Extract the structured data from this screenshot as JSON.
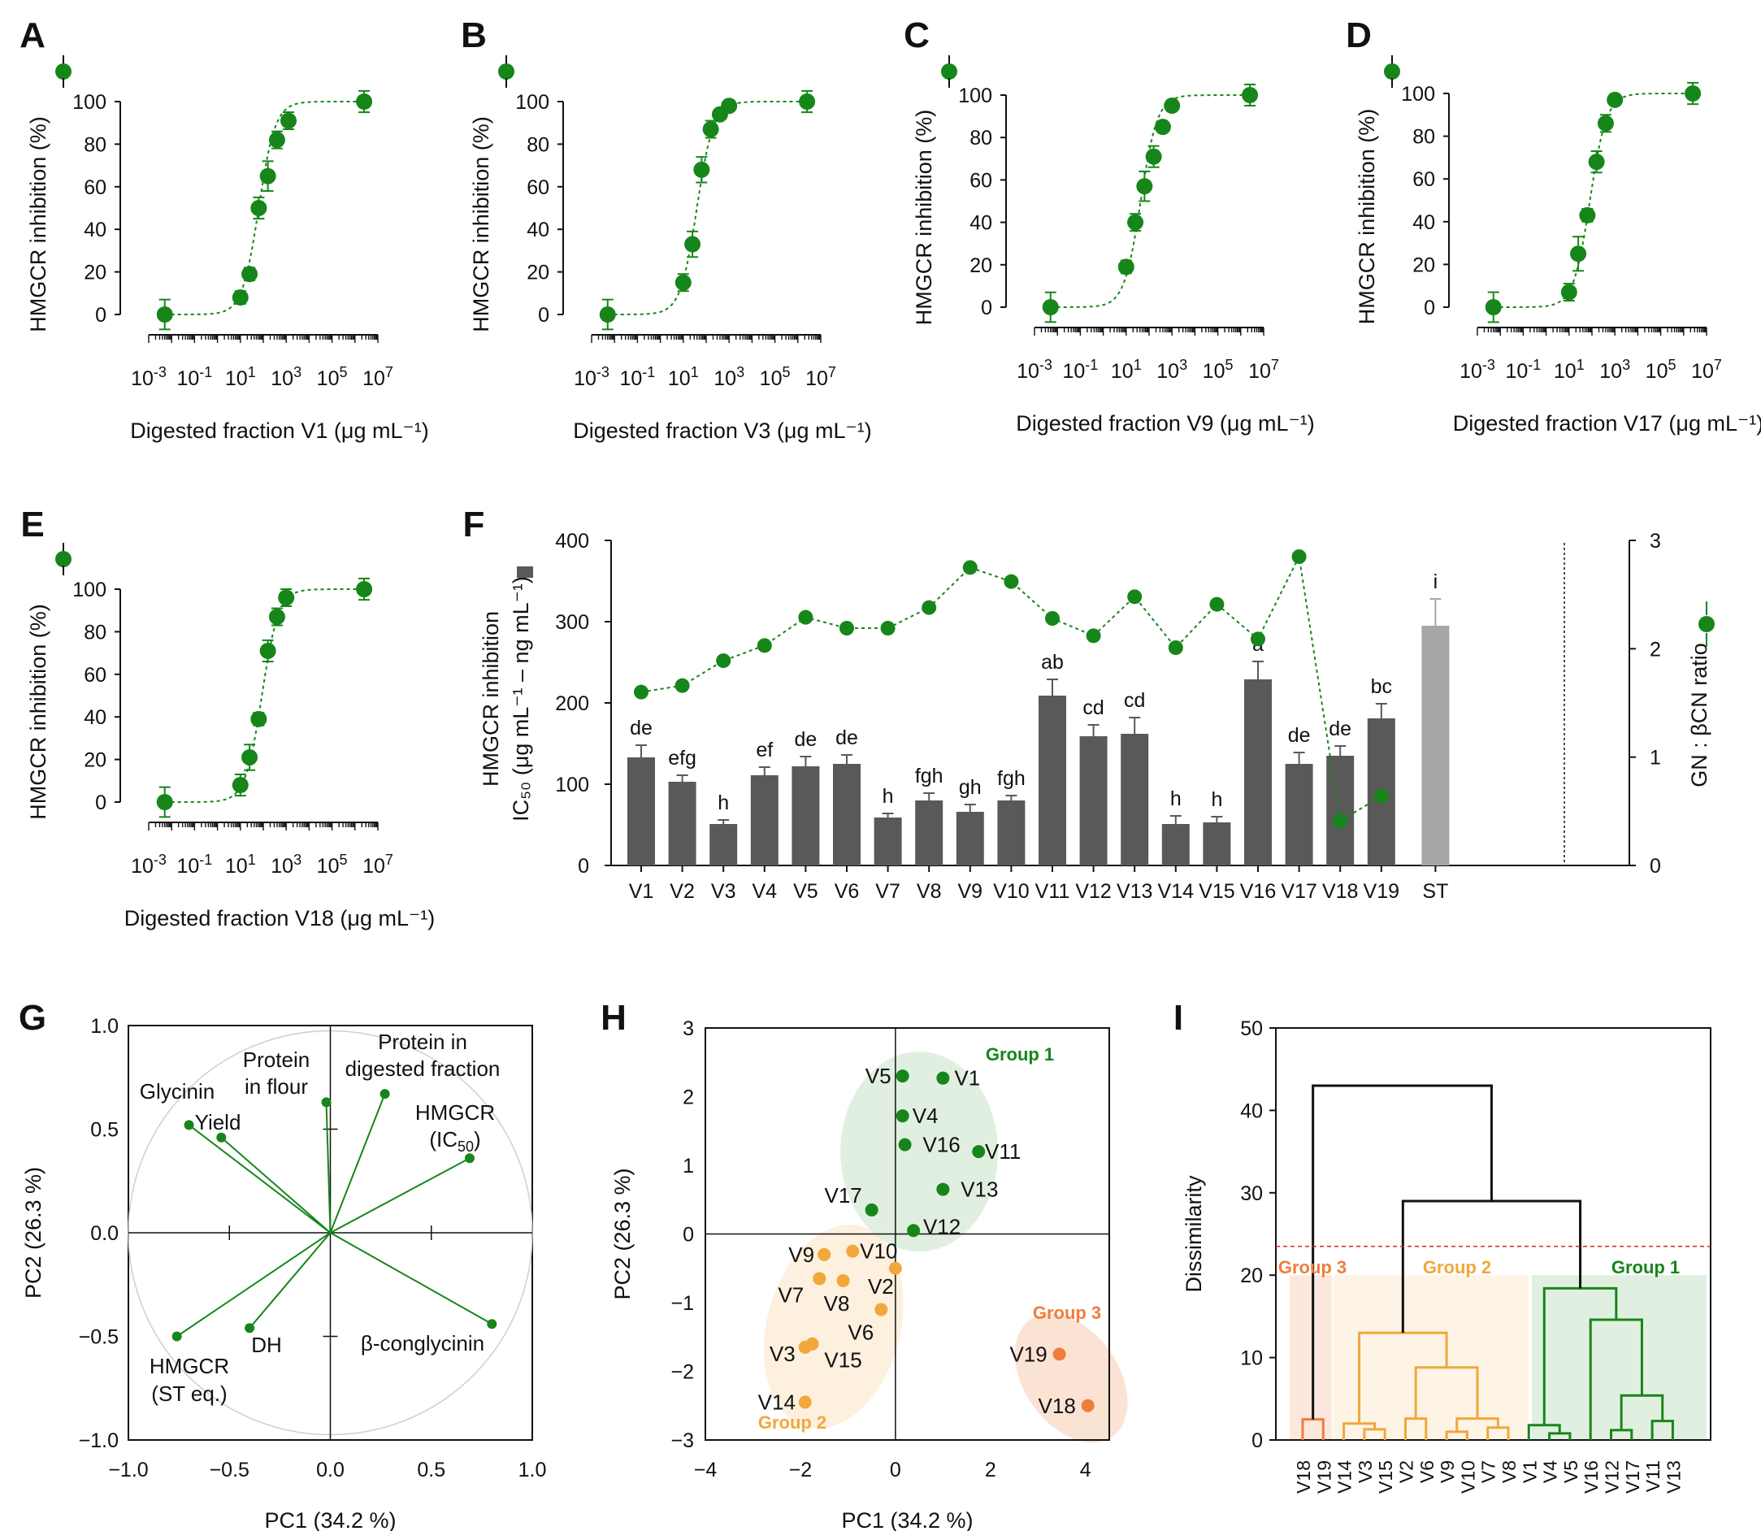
{
  "colors": {
    "green": "#16861A",
    "dark_bar": "#595959",
    "st_bar": "#A6A6A6",
    "group1": "#16861A",
    "group2": "#F2A73B",
    "group3": "#EE7E3C",
    "cutline": "#D62728"
  },
  "chart_data": [
    {
      "panel": "A",
      "type": "scatter",
      "xlabel": "Digested fraction V1 (μg mL⁻¹)",
      "ylabel": "HMGCR inhibition (%)",
      "x_log10": [
        -2.3,
        1.0,
        1.4,
        1.8,
        2.2,
        2.6,
        3.1,
        6.4
      ],
      "y": [
        0,
        8,
        19,
        50,
        65,
        82,
        91,
        100
      ],
      "err": [
        7,
        3,
        3,
        5,
        7,
        4,
        4,
        5
      ],
      "ylim": [
        0,
        100
      ],
      "xlim_log10": [
        -3,
        7
      ]
    },
    {
      "panel": "B",
      "type": "scatter",
      "xlabel": "Digested fraction V3 (μg mL⁻¹)",
      "ylabel": "HMGCR inhibition (%)",
      "x_log10": [
        -2.3,
        1.0,
        1.4,
        1.8,
        2.2,
        2.6,
        3.0,
        6.4
      ],
      "y": [
        0,
        15,
        33,
        68,
        87,
        94,
        98,
        100
      ],
      "err": [
        7,
        4,
        6,
        6,
        4,
        2,
        2,
        5
      ],
      "ylim": [
        0,
        100
      ],
      "xlim_log10": [
        -3,
        7
      ]
    },
    {
      "panel": "C",
      "type": "scatter",
      "xlabel": "Digested fraction V9 (μg mL⁻¹)",
      "ylabel": "HMGCR inhibition (%)",
      "x_log10": [
        -2.3,
        1.0,
        1.4,
        1.8,
        2.2,
        2.6,
        3.0,
        6.4
      ],
      "y": [
        0,
        19,
        40,
        57,
        71,
        85,
        95,
        100
      ],
      "err": [
        7,
        3,
        4,
        7,
        5,
        2,
        2,
        5
      ],
      "ylim": [
        0,
        100
      ],
      "xlim_log10": [
        -3,
        7
      ]
    },
    {
      "panel": "D",
      "type": "scatter",
      "xlabel": "Digested fraction V17 (μg mL⁻¹)",
      "ylabel": "HMGCR inhibition (%)",
      "x_log10": [
        -2.3,
        1.0,
        1.4,
        1.8,
        2.2,
        2.6,
        3.0,
        6.4
      ],
      "y": [
        0,
        7,
        25,
        43,
        68,
        86,
        97,
        100
      ],
      "err": [
        7,
        4,
        8,
        3,
        5,
        4,
        2,
        5
      ],
      "ylim": [
        0,
        100
      ],
      "xlim_log10": [
        -3,
        7
      ]
    },
    {
      "panel": "E",
      "type": "scatter",
      "xlabel": "Digested fraction V18 (μg mL⁻¹)",
      "ylabel": "HMGCR inhibition (%)",
      "x_log10": [
        -2.3,
        1.0,
        1.4,
        1.8,
        2.2,
        2.6,
        3.0,
        6.4
      ],
      "y": [
        0,
        8,
        21,
        39,
        71,
        87,
        96,
        100
      ],
      "err": [
        7,
        5,
        6,
        3,
        5,
        4,
        4,
        5
      ],
      "ylim": [
        0,
        100
      ],
      "xlim_log10": [
        -3,
        7
      ]
    },
    {
      "panel": "F",
      "type": "bar",
      "ylabel_left_line1": "HMGCR inhibition",
      "ylabel_left_line2": "IC₅₀ (μg mL⁻¹ – ng mL⁻¹)",
      "ylabel_right": "GN : βCN  ratio",
      "categories": [
        "V1",
        "V2",
        "V3",
        "V4",
        "V5",
        "V6",
        "V7",
        "V8",
        "V9",
        "V10",
        "V11",
        "V12",
        "V13",
        "V14",
        "V15",
        "V16",
        "V17",
        "V18",
        "V19",
        "ST"
      ],
      "ic50": [
        133,
        103,
        51,
        111,
        122,
        125,
        59,
        80,
        66,
        80,
        209,
        159,
        162,
        51,
        53,
        229,
        125,
        135,
        181,
        295
      ],
      "ic50_err": [
        15,
        8,
        5,
        10,
        12,
        11,
        5,
        9,
        9,
        6,
        20,
        14,
        20,
        10,
        7,
        22,
        14,
        12,
        18,
        33
      ],
      "letters": [
        "de",
        "efg",
        "h",
        "ef",
        "de",
        "de",
        "h",
        "fgh",
        "gh",
        "fgh",
        "ab",
        "cd",
        "cd",
        "h",
        "h",
        "a",
        "de",
        "de",
        "bc",
        "i"
      ],
      "ratio": [
        1.6,
        1.66,
        1.89,
        2.03,
        2.29,
        2.19,
        2.19,
        2.38,
        2.75,
        2.62,
        2.28,
        2.12,
        2.48,
        2.01,
        2.41,
        2.09,
        2.85,
        0.41,
        0.64
      ],
      "y_left_lim": [
        0,
        400
      ],
      "y_right_lim": [
        0,
        3
      ]
    },
    {
      "panel": "G",
      "type": "scatter",
      "xlabel": "PC1 (34.2 %)",
      "ylabel": "PC2 (26.3 %)",
      "xlim": [
        -1.0,
        1.0
      ],
      "ylim": [
        -1.0,
        1.0
      ],
      "loadings": [
        {
          "label": "Glycinin",
          "x": -0.7,
          "y": 0.52
        },
        {
          "label": "Yield",
          "x": -0.54,
          "y": 0.46
        },
        {
          "label": "Protein in flour",
          "x": -0.02,
          "y": 0.63
        },
        {
          "label": "Protein in digested fraction",
          "x": 0.27,
          "y": 0.67
        },
        {
          "label": "HMGCR (IC50)",
          "x": 0.69,
          "y": 0.36
        },
        {
          "label": "β-conglycinin",
          "x": 0.8,
          "y": -0.44
        },
        {
          "label": "DH",
          "x": -0.4,
          "y": -0.46
        },
        {
          "label": "HMGCR (ST eq.)",
          "x": -0.76,
          "y": -0.5
        }
      ]
    },
    {
      "panel": "H",
      "type": "scatter",
      "xlabel": "PC1 (34.2 %)",
      "ylabel": "PC2 (26.3 %)",
      "xlim": [
        -4,
        4.5
      ],
      "ylim": [
        -3,
        3
      ],
      "points": [
        {
          "label": "V1",
          "x": 1.0,
          "y": 2.27,
          "group": 1
        },
        {
          "label": "V5",
          "x": 0.15,
          "y": 2.3,
          "group": 1
        },
        {
          "label": "V4",
          "x": 0.15,
          "y": 1.72,
          "group": 1
        },
        {
          "label": "V11",
          "x": 1.75,
          "y": 1.2,
          "group": 1
        },
        {
          "label": "V16",
          "x": 0.2,
          "y": 1.3,
          "group": 1
        },
        {
          "label": "V13",
          "x": 1.0,
          "y": 0.65,
          "group": 1
        },
        {
          "label": "V17",
          "x": -0.5,
          "y": 0.35,
          "group": 1
        },
        {
          "label": "V12",
          "x": 0.38,
          "y": 0.05,
          "group": 1
        },
        {
          "label": "V9",
          "x": -1.5,
          "y": -0.3,
          "group": 2
        },
        {
          "label": "V10",
          "x": -0.9,
          "y": -0.25,
          "group": 2
        },
        {
          "label": "V2",
          "x": 0.0,
          "y": -0.5,
          "group": 2
        },
        {
          "label": "V7",
          "x": -1.6,
          "y": -0.65,
          "group": 2
        },
        {
          "label": "V8",
          "x": -1.1,
          "y": -0.68,
          "group": 2
        },
        {
          "label": "V6",
          "x": -0.3,
          "y": -1.1,
          "group": 2
        },
        {
          "label": "V3",
          "x": -1.9,
          "y": -1.65,
          "group": 2
        },
        {
          "label": "V15",
          "x": -1.75,
          "y": -1.6,
          "group": 2
        },
        {
          "label": "V14",
          "x": -1.9,
          "y": -2.45,
          "group": 2
        },
        {
          "label": "V19",
          "x": 3.45,
          "y": -1.75,
          "group": 3
        },
        {
          "label": "V18",
          "x": 4.05,
          "y": -2.5,
          "group": 3
        }
      ],
      "group_labels": [
        "Group 1",
        "Group 2",
        "Group 3"
      ]
    },
    {
      "panel": "I",
      "type": "dendrogram",
      "ylabel": "Dissimilarity",
      "ylim": [
        0,
        50
      ],
      "leaves": [
        "V18",
        "V19",
        "V14",
        "V3",
        "V15",
        "V2",
        "V6",
        "V9",
        "V10",
        "V7",
        "V8",
        "V1",
        "V4",
        "V5",
        "V16",
        "V12",
        "V17",
        "V11",
        "V13"
      ],
      "cut_height": 23.5,
      "group_labels": [
        "Group 3",
        "Group 2",
        "Group 1"
      ]
    }
  ],
  "panel_letters": [
    "A",
    "B",
    "C",
    "D",
    "E",
    "F",
    "G",
    "H",
    "I"
  ],
  "strings": {
    "tick_0": "0",
    "tick_20": "20",
    "tick_40": "40",
    "tick_60": "60",
    "tick_80": "80",
    "tick_100": "100",
    "x_m3": "10",
    "x_m3_exp": "-3",
    "x_m1": "10",
    "x_m1_exp": "-1",
    "x_1": "10",
    "x_1_exp": "1",
    "x_3": "10",
    "x_3_exp": "3",
    "x_5": "10",
    "x_5_exp": "5",
    "x_7": "10",
    "x_7_exp": "7"
  }
}
